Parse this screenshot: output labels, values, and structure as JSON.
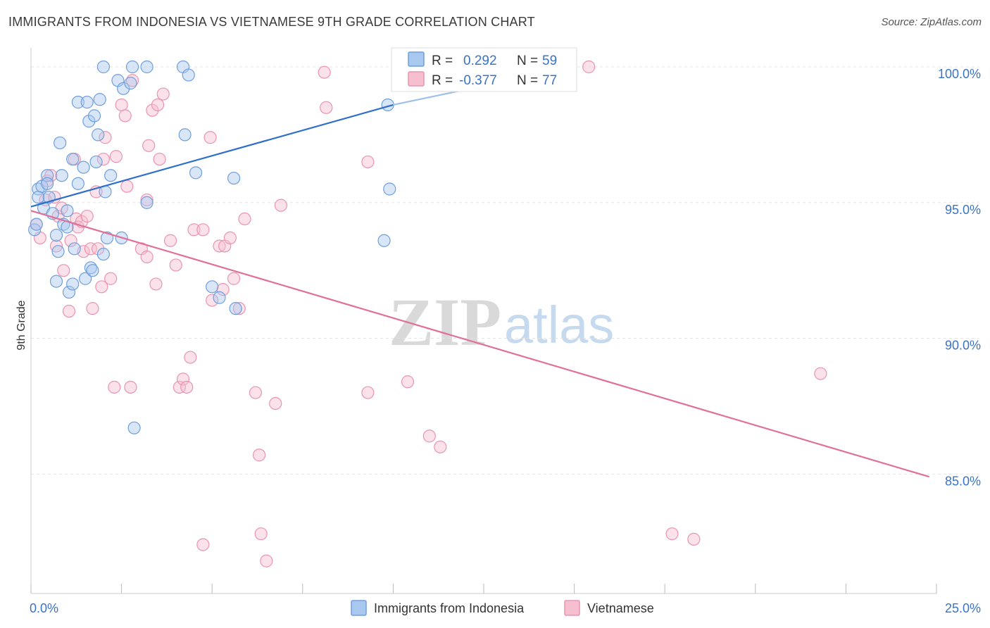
{
  "header": {
    "title": "IMMIGRANTS FROM INDONESIA VS VIETNAMESE 9TH GRADE CORRELATION CHART",
    "source": "Source: ZipAtlas.com"
  },
  "watermark": {
    "zip": "ZIP",
    "atlas": "atlas"
  },
  "colors": {
    "blue_fill": "#a9c8f0",
    "blue_stroke": "#6f9fdc",
    "blue_line": "#2e6fc9",
    "pink_fill": "#f6bfd0",
    "pink_stroke": "#e895b0",
    "pink_line": "#e0709a",
    "tick_text": "#3b73c4",
    "grid": "#e4e4e4"
  },
  "stats_box": {
    "rows": [
      {
        "r_label": "R =",
        "r_value": "0.292",
        "n_label": "N =",
        "n_value": "59",
        "color": "blue"
      },
      {
        "r_label": "R =",
        "r_value": "-0.377",
        "n_label": "N =",
        "n_value": "77",
        "color": "pink"
      }
    ]
  },
  "legend": {
    "items": [
      {
        "label": "Immigrants from Indonesia",
        "color": "blue"
      },
      {
        "label": "Vietnamese",
        "color": "pink"
      }
    ]
  },
  "chart_data": {
    "type": "scatter",
    "title": "IMMIGRANTS FROM INDONESIA VS VIETNAMESE 9TH GRADE CORRELATION CHART",
    "xlabel": "",
    "ylabel": "9th Grade",
    "xlim": [
      0,
      25
    ],
    "ylim": [
      80.6,
      100.7
    ],
    "x_tick_labels": [
      {
        "value": 0,
        "label": "0.0%"
      },
      {
        "value": 25,
        "label": "25.0%"
      }
    ],
    "y_tick_labels": [
      {
        "value": 100,
        "label": "100.0%"
      },
      {
        "value": 95,
        "label": "95.0%"
      },
      {
        "value": 90,
        "label": "90.0%"
      },
      {
        "value": 85,
        "label": "85.0%"
      }
    ],
    "grid": true,
    "legend_position": "bottom",
    "series": [
      {
        "name": "Immigrants from Indonesia",
        "color": "blue",
        "trend": {
          "x": [
            0.0,
            15.0
          ],
          "y": [
            94.85,
            100.0
          ]
        },
        "trend_extension": {
          "x": [
            10.0,
            15.0
          ],
          "y": [
            98.6,
            100.0
          ]
        },
        "points": [
          [
            0.1,
            94.0
          ],
          [
            0.15,
            94.2
          ],
          [
            0.2,
            95.5
          ],
          [
            0.2,
            95.2
          ],
          [
            0.3,
            95.6
          ],
          [
            0.35,
            94.8
          ],
          [
            0.45,
            96.0
          ],
          [
            0.45,
            95.7
          ],
          [
            0.5,
            95.2
          ],
          [
            0.6,
            94.6
          ],
          [
            0.7,
            93.8
          ],
          [
            0.7,
            92.1
          ],
          [
            0.75,
            93.2
          ],
          [
            0.8,
            97.2
          ],
          [
            0.85,
            96.0
          ],
          [
            0.9,
            94.2
          ],
          [
            1.0,
            94.1
          ],
          [
            1.0,
            94.7
          ],
          [
            1.05,
            91.7
          ],
          [
            1.15,
            92.0
          ],
          [
            1.15,
            96.6
          ],
          [
            1.2,
            93.3
          ],
          [
            1.3,
            95.7
          ],
          [
            1.3,
            98.7
          ],
          [
            1.45,
            96.3
          ],
          [
            1.5,
            92.2
          ],
          [
            1.55,
            98.7
          ],
          [
            1.6,
            98.0
          ],
          [
            1.65,
            92.6
          ],
          [
            1.7,
            92.5
          ],
          [
            1.75,
            98.2
          ],
          [
            1.8,
            96.5
          ],
          [
            1.85,
            97.5
          ],
          [
            1.9,
            98.8
          ],
          [
            2.0,
            93.1
          ],
          [
            2.0,
            100.0
          ],
          [
            2.05,
            95.4
          ],
          [
            2.1,
            93.7
          ],
          [
            2.2,
            96.0
          ],
          [
            2.4,
            99.5
          ],
          [
            2.5,
            93.7
          ],
          [
            2.55,
            99.2
          ],
          [
            2.75,
            99.4
          ],
          [
            2.8,
            100.0
          ],
          [
            2.85,
            86.7
          ],
          [
            3.2,
            95.0
          ],
          [
            3.2,
            100.0
          ],
          [
            4.2,
            100.0
          ],
          [
            4.25,
            97.5
          ],
          [
            4.35,
            99.7
          ],
          [
            4.55,
            96.1
          ],
          [
            5.0,
            91.9
          ],
          [
            5.2,
            91.5
          ],
          [
            5.65,
            91.1
          ],
          [
            5.6,
            95.9
          ],
          [
            9.85,
            98.6
          ],
          [
            9.9,
            95.5
          ],
          [
            9.75,
            93.6
          ],
          [
            10.25,
            100.0
          ]
        ]
      },
      {
        "name": "Vietnamese",
        "color": "pink",
        "trend": {
          "x": [
            0.0,
            24.8
          ],
          "y": [
            94.7,
            84.9
          ]
        },
        "points": [
          [
            0.15,
            94.2
          ],
          [
            0.25,
            93.7
          ],
          [
            0.4,
            95.1
          ],
          [
            0.45,
            95.8
          ],
          [
            0.55,
            96.0
          ],
          [
            0.65,
            95.2
          ],
          [
            0.7,
            93.4
          ],
          [
            0.75,
            94.5
          ],
          [
            0.85,
            94.8
          ],
          [
            0.9,
            92.5
          ],
          [
            1.05,
            91.0
          ],
          [
            1.1,
            93.6
          ],
          [
            1.2,
            96.6
          ],
          [
            1.25,
            94.4
          ],
          [
            1.3,
            94.1
          ],
          [
            1.4,
            94.3
          ],
          [
            1.45,
            93.2
          ],
          [
            1.55,
            94.5
          ],
          [
            1.65,
            93.3
          ],
          [
            1.7,
            91.1
          ],
          [
            1.8,
            95.4
          ],
          [
            1.85,
            93.3
          ],
          [
            1.95,
            91.9
          ],
          [
            2.0,
            96.6
          ],
          [
            2.05,
            97.4
          ],
          [
            2.2,
            92.2
          ],
          [
            2.35,
            96.7
          ],
          [
            2.3,
            88.2
          ],
          [
            2.5,
            98.6
          ],
          [
            2.6,
            98.2
          ],
          [
            2.65,
            95.6
          ],
          [
            2.75,
            88.2
          ],
          [
            2.8,
            99.5
          ],
          [
            3.05,
            93.3
          ],
          [
            3.2,
            93.0
          ],
          [
            3.2,
            95.1
          ],
          [
            3.25,
            97.1
          ],
          [
            3.35,
            98.4
          ],
          [
            3.45,
            92.0
          ],
          [
            3.5,
            98.6
          ],
          [
            3.55,
            96.6
          ],
          [
            3.65,
            99.0
          ],
          [
            3.85,
            93.6
          ],
          [
            4.0,
            92.7
          ],
          [
            4.1,
            88.2
          ],
          [
            4.2,
            88.5
          ],
          [
            4.3,
            88.2
          ],
          [
            4.4,
            89.3
          ],
          [
            4.5,
            94.0
          ],
          [
            4.75,
            94.0
          ],
          [
            4.75,
            82.4
          ],
          [
            4.95,
            97.4
          ],
          [
            5.0,
            91.4
          ],
          [
            5.2,
            93.4
          ],
          [
            5.35,
            93.4
          ],
          [
            5.3,
            91.8
          ],
          [
            5.5,
            93.7
          ],
          [
            5.6,
            92.2
          ],
          [
            5.75,
            91.1
          ],
          [
            5.9,
            94.4
          ],
          [
            6.2,
            88.0
          ],
          [
            6.3,
            85.7
          ],
          [
            6.35,
            82.8
          ],
          [
            6.5,
            81.8
          ],
          [
            6.75,
            87.6
          ],
          [
            6.9,
            94.9
          ],
          [
            8.1,
            99.8
          ],
          [
            8.15,
            98.5
          ],
          [
            9.3,
            96.5
          ],
          [
            9.3,
            88.0
          ],
          [
            10.4,
            88.4
          ],
          [
            11.0,
            86.4
          ],
          [
            11.3,
            86.0
          ],
          [
            15.4,
            100.0
          ],
          [
            17.7,
            82.8
          ],
          [
            18.3,
            82.6
          ],
          [
            21.8,
            88.7
          ]
        ]
      }
    ]
  }
}
